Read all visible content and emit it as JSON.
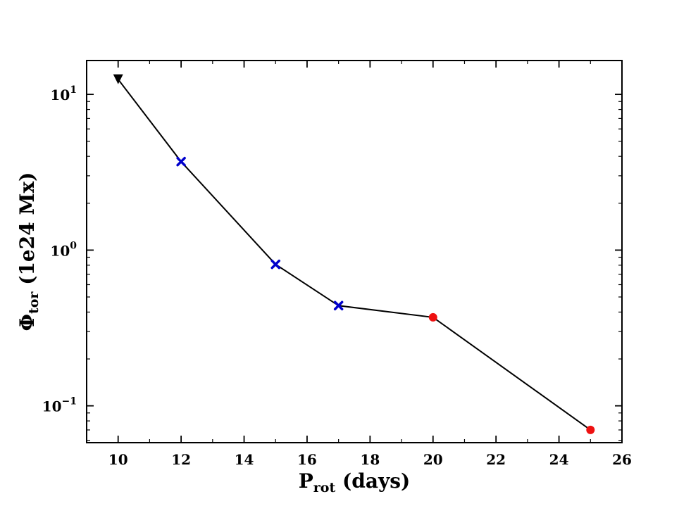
{
  "chart_data": {
    "type": "line",
    "xlabel": {
      "main": "P",
      "sub": "rot",
      "rest": " (days)"
    },
    "ylabel": {
      "main": "Φ",
      "sub": "tor",
      "rest": " (1e24 Mx)"
    },
    "xlim": [
      9,
      26
    ],
    "ylim": [
      0.058,
      16.5
    ],
    "yscale": "log",
    "grid": false,
    "x_ticks": [
      "10",
      "12",
      "14",
      "16",
      "18",
      "20",
      "22",
      "24",
      "26"
    ],
    "y_ticks": [
      {
        "base": "10",
        "exp": "1",
        "value": 10
      },
      {
        "base": "10",
        "exp": "0",
        "value": 1
      },
      {
        "base": "10",
        "exp": "−1",
        "value": 0.1
      }
    ],
    "line_color": "#000000",
    "series": [
      {
        "x": [
          10,
          12,
          15,
          17,
          20,
          25
        ],
        "y": [
          12.5,
          3.7,
          0.81,
          0.44,
          0.37,
          0.07
        ],
        "markers": [
          "triangle-down",
          "x",
          "x",
          "x",
          "circle",
          "circle"
        ],
        "colors": [
          "#000000",
          "#0000cc",
          "#0000cc",
          "#0000cc",
          "#ee1111",
          "#ee1111"
        ]
      }
    ]
  }
}
